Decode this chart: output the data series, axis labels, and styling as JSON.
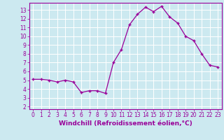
{
  "x": [
    0,
    1,
    2,
    3,
    4,
    5,
    6,
    7,
    8,
    9,
    10,
    11,
    12,
    13,
    14,
    15,
    16,
    17,
    18,
    19,
    20,
    21,
    22,
    23
  ],
  "y": [
    5.1,
    5.1,
    5.0,
    4.8,
    5.0,
    4.8,
    3.6,
    3.8,
    3.8,
    3.5,
    7.0,
    8.5,
    11.3,
    12.5,
    13.3,
    12.8,
    13.4,
    12.2,
    11.5,
    10.0,
    9.5,
    8.0,
    6.7,
    6.5
  ],
  "line_color": "#990099",
  "marker": "+",
  "marker_size": 3.5,
  "marker_linewidth": 1.0,
  "xlabel": "Windchill (Refroidissement éolien,°C)",
  "xlabel_fontsize": 6.5,
  "ylabel_ticks": [
    2,
    3,
    4,
    5,
    6,
    7,
    8,
    9,
    10,
    11,
    12,
    13
  ],
  "xtick_labels": [
    "0",
    "1",
    "2",
    "3",
    "4",
    "5",
    "6",
    "7",
    "8",
    "9",
    "10",
    "11",
    "12",
    "13",
    "14",
    "15",
    "16",
    "17",
    "18",
    "19",
    "20",
    "21",
    "22",
    "23"
  ],
  "xlim": [
    -0.5,
    23.5
  ],
  "ylim": [
    1.7,
    13.8
  ],
  "bg_color": "#cce9f0",
  "grid_color": "#ffffff",
  "tick_color": "#990099",
  "label_color": "#990099",
  "tick_fontsize": 5.5,
  "linewidth": 0.9,
  "spine_color": "#990099"
}
